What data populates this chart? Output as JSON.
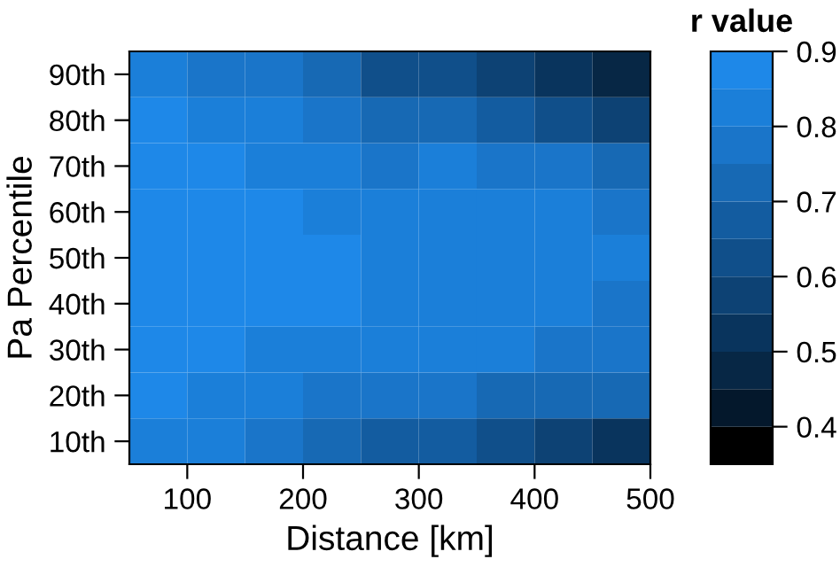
{
  "chart_data": {
    "type": "heatmap",
    "xlabel": "Distance [km]",
    "ylabel": "Pa Percentile",
    "clabel": "r value",
    "x": [
      75,
      125,
      175,
      225,
      275,
      325,
      375,
      425,
      475
    ],
    "xlim": [
      50,
      500
    ],
    "xticks": [
      100,
      200,
      300,
      400,
      500
    ],
    "y_categories": [
      "90th",
      "80th",
      "70th",
      "60th",
      "50th",
      "40th",
      "30th",
      "20th",
      "10th"
    ],
    "cells": [
      [
        0.8,
        0.78,
        0.75,
        0.7,
        0.6,
        0.6,
        0.55,
        0.5,
        0.45
      ],
      [
        0.86,
        0.82,
        0.8,
        0.77,
        0.72,
        0.72,
        0.68,
        0.62,
        0.57
      ],
      [
        0.87,
        0.85,
        0.84,
        0.82,
        0.78,
        0.8,
        0.78,
        0.75,
        0.7
      ],
      [
        0.88,
        0.85,
        0.85,
        0.84,
        0.83,
        0.84,
        0.82,
        0.8,
        0.77
      ],
      [
        0.88,
        0.85,
        0.85,
        0.85,
        0.84,
        0.84,
        0.84,
        0.83,
        0.8
      ],
      [
        0.88,
        0.85,
        0.85,
        0.85,
        0.84,
        0.84,
        0.83,
        0.82,
        0.79
      ],
      [
        0.87,
        0.85,
        0.84,
        0.83,
        0.82,
        0.81,
        0.8,
        0.78,
        0.76
      ],
      [
        0.85,
        0.82,
        0.8,
        0.78,
        0.76,
        0.75,
        0.74,
        0.72,
        0.7
      ],
      [
        0.83,
        0.8,
        0.77,
        0.72,
        0.66,
        0.68,
        0.63,
        0.58,
        0.52
      ]
    ],
    "clim": [
      0.35,
      0.9
    ],
    "cticks": [
      0.4,
      0.5,
      0.6,
      0.7,
      0.8,
      0.9
    ],
    "colors": [
      "#000000",
      "#04182c",
      "#072745",
      "#09345d",
      "#0d4274",
      "#104f8a",
      "#135ca0",
      "#1769b4",
      "#1a75c9",
      "#1b7fd9",
      "#1e88e8"
    ]
  }
}
